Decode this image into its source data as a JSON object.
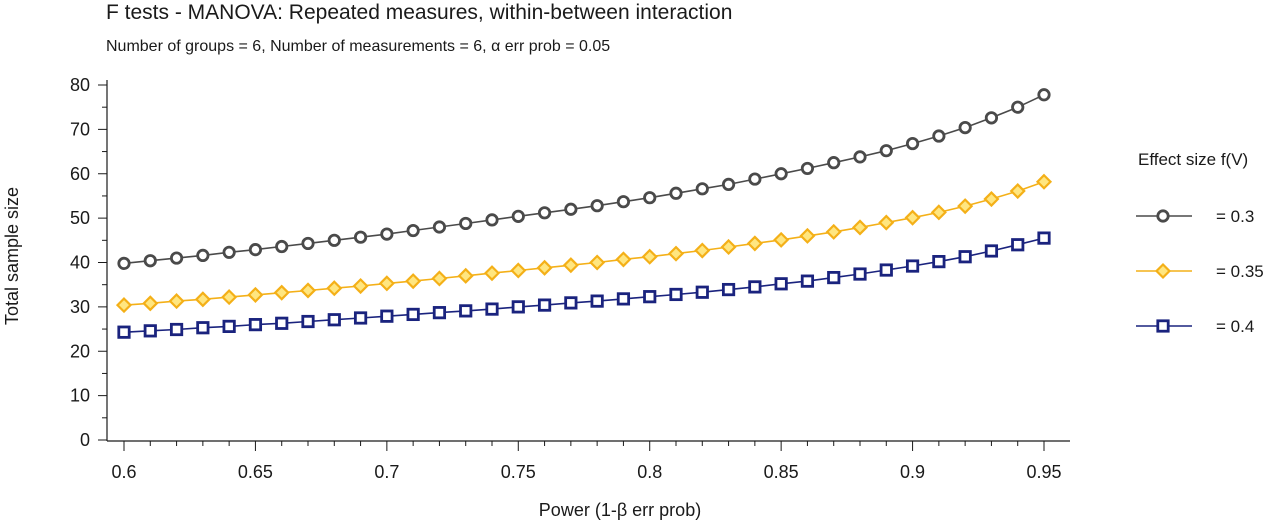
{
  "chart_data": {
    "type": "line",
    "title": "F tests - MANOVA: Repeated measures, within-between interaction",
    "subtitle": "Number of groups = 6, Number of measurements = 6, α err prob = 0.05",
    "xlabel": "Power (1-β err prob)",
    "ylabel": "Total sample size",
    "xlim": [
      0.6,
      0.95
    ],
    "ylim": [
      0,
      80
    ],
    "x_ticks": [
      "0.6",
      "0.65",
      "0.7",
      "0.75",
      "0.8",
      "0.85",
      "0.9",
      "0.95"
    ],
    "y_ticks": [
      "0",
      "10",
      "20",
      "30",
      "40",
      "50",
      "60",
      "70",
      "80"
    ],
    "legend": {
      "title": "Effect size f(V)",
      "position": "right"
    },
    "x": [
      0.6,
      0.61,
      0.62,
      0.63,
      0.64,
      0.65,
      0.66,
      0.67,
      0.68,
      0.69,
      0.7,
      0.71,
      0.72,
      0.73,
      0.74,
      0.75,
      0.76,
      0.77,
      0.78,
      0.79,
      0.8,
      0.81,
      0.82,
      0.83,
      0.84,
      0.85,
      0.86,
      0.87,
      0.88,
      0.89,
      0.9,
      0.91,
      0.92,
      0.93,
      0.94,
      0.95
    ],
    "series": [
      {
        "name": "= 0.3",
        "color": "#4a4a4a",
        "marker": "circle",
        "values": [
          39.8,
          40.4,
          41.0,
          41.6,
          42.3,
          42.9,
          43.6,
          44.3,
          45.0,
          45.7,
          46.4,
          47.2,
          48.0,
          48.8,
          49.6,
          50.4,
          51.2,
          52.0,
          52.8,
          53.7,
          54.6,
          55.6,
          56.6,
          57.6,
          58.8,
          60.0,
          61.2,
          62.5,
          63.8,
          65.2,
          66.8,
          68.5,
          70.4,
          72.6,
          75.0,
          77.8
        ]
      },
      {
        "name": "= 0.35",
        "color": "#f4b018",
        "marker": "diamond",
        "values": [
          30.4,
          30.8,
          31.3,
          31.7,
          32.2,
          32.7,
          33.2,
          33.7,
          34.2,
          34.7,
          35.3,
          35.8,
          36.4,
          37.0,
          37.6,
          38.2,
          38.8,
          39.4,
          40.0,
          40.7,
          41.3,
          42.0,
          42.7,
          43.5,
          44.3,
          45.1,
          46.0,
          46.9,
          47.9,
          49.0,
          50.1,
          51.3,
          52.7,
          54.3,
          56.1,
          58.2
        ]
      },
      {
        "name": "= 0.4",
        "color": "#1a237e",
        "marker": "square",
        "values": [
          24.3,
          24.6,
          24.9,
          25.3,
          25.6,
          26.0,
          26.3,
          26.7,
          27.1,
          27.5,
          27.9,
          28.3,
          28.7,
          29.1,
          29.5,
          30.0,
          30.4,
          30.9,
          31.3,
          31.8,
          32.3,
          32.8,
          33.3,
          33.9,
          34.5,
          35.2,
          35.8,
          36.6,
          37.4,
          38.3,
          39.2,
          40.2,
          41.3,
          42.6,
          44.0,
          45.5
        ]
      }
    ]
  }
}
